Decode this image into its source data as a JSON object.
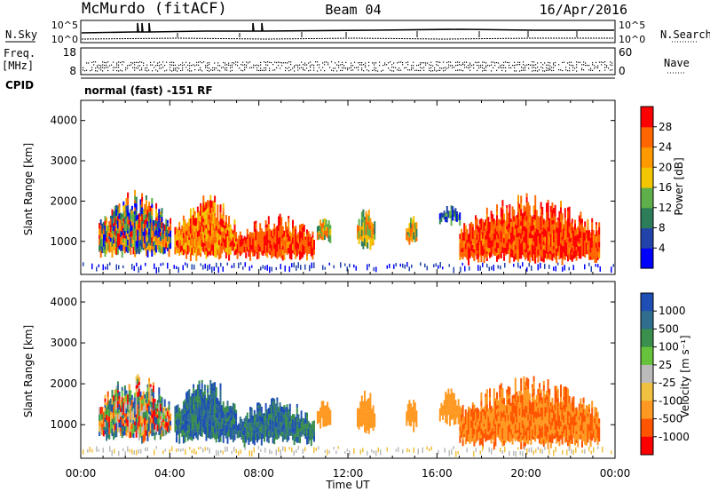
{
  "header": {
    "station": "McMurdo (fitACF)",
    "beam": "Beam 04",
    "date": "16/Apr/2016"
  },
  "top_panel": {
    "nsky_label": "N.Sky",
    "nsky_ticks": [
      "10^5",
      "10^0"
    ],
    "nsearch_label": "N.Search",
    "nsearch_ticks": [
      "10^5",
      "10^0"
    ],
    "freq_label_line1": "Freq.",
    "freq_label_line2": "[MHz]",
    "freq_ticks": [
      "18",
      "8"
    ],
    "nave_label": "Nave",
    "nave_ticks": [
      "60",
      "0"
    ],
    "cpid_label": "CPID",
    "cpid_value": "normal (fast) -151 RF"
  },
  "chart_data": [
    {
      "type": "heatmap",
      "panel": "power",
      "ylabel": "Slant Range [km]",
      "ylim": [
        180,
        4500
      ],
      "yticks": [
        "1000",
        "2000",
        "3000",
        "4000"
      ],
      "xticks": [
        "00:00",
        "04:00",
        "08:00",
        "12:00",
        "16:00",
        "20:00",
        "00:00"
      ],
      "xlim_hours": [
        0,
        24
      ],
      "colorbar": {
        "label": "Power [dB]",
        "ticks": [
          "4",
          "8",
          "12",
          "16",
          "20",
          "24",
          "28"
        ],
        "colors": [
          "#0000ff",
          "#2244aa",
          "#2e7d5a",
          "#5fb04a",
          "#f2c500",
          "#ff9900",
          "#ff6600",
          "#ff0000"
        ]
      },
      "echo_regions": [
        {
          "t_start": 0.8,
          "t_end": 4.0,
          "r_low": 700,
          "r_high": 2300,
          "level": "mixed"
        },
        {
          "t_start": 4.2,
          "t_end": 7.0,
          "r_low": 650,
          "r_high": 2200,
          "level": "high"
        },
        {
          "t_start": 7.0,
          "t_end": 10.5,
          "r_low": 600,
          "r_high": 1700,
          "level": "max"
        },
        {
          "t_start": 10.6,
          "t_end": 11.2,
          "r_low": 1000,
          "r_high": 1700,
          "level": "mid"
        },
        {
          "t_start": 12.4,
          "t_end": 13.2,
          "r_low": 900,
          "r_high": 1900,
          "level": "mid"
        },
        {
          "t_start": 14.6,
          "t_end": 15.1,
          "r_low": 1000,
          "r_high": 1700,
          "level": "mid"
        },
        {
          "t_start": 16.1,
          "t_end": 17.0,
          "r_low": 1500,
          "r_high": 1900,
          "level": "low"
        },
        {
          "t_start": 17.0,
          "t_end": 23.3,
          "r_low": 550,
          "r_high": 2200,
          "level": "max"
        }
      ]
    },
    {
      "type": "heatmap",
      "panel": "velocity",
      "ylabel": "Slant Range [km]",
      "ylim": [
        180,
        4500
      ],
      "yticks": [
        "1000",
        "2000",
        "3000",
        "4000"
      ],
      "xticks": [
        "00:00",
        "04:00",
        "08:00",
        "12:00",
        "16:00",
        "20:00",
        "00:00"
      ],
      "xlabel": "Time UT",
      "xlim_hours": [
        0,
        24
      ],
      "colorbar": {
        "label": "Velocity [m s⁻¹]",
        "ticks": [
          "1000",
          "500",
          "100",
          "25",
          "-25",
          "-100",
          "-500",
          "-1000"
        ],
        "colors": [
          "#1f4fb4",
          "#2f6e8e",
          "#3a8f4d",
          "#66c23a",
          "#bbbbbb",
          "#f0c040",
          "#ff9922",
          "#ff5500",
          "#ff0000"
        ]
      },
      "echo_regions": [
        {
          "t_start": 0.8,
          "t_end": 4.0,
          "r_low": 700,
          "r_high": 2300,
          "level": "mixed"
        },
        {
          "t_start": 4.2,
          "t_end": 7.0,
          "r_low": 650,
          "r_high": 2200,
          "level": "pos"
        },
        {
          "t_start": 7.0,
          "t_end": 10.5,
          "r_low": 600,
          "r_high": 1700,
          "level": "pos"
        },
        {
          "t_start": 10.6,
          "t_end": 11.2,
          "r_low": 1000,
          "r_high": 1700,
          "level": "neg"
        },
        {
          "t_start": 12.4,
          "t_end": 13.2,
          "r_low": 900,
          "r_high": 1900,
          "level": "neg"
        },
        {
          "t_start": 14.6,
          "t_end": 15.1,
          "r_low": 1000,
          "r_high": 1700,
          "level": "neg"
        },
        {
          "t_start": 16.1,
          "t_end": 17.0,
          "r_low": 1100,
          "r_high": 1900,
          "level": "neg"
        },
        {
          "t_start": 17.0,
          "t_end": 23.3,
          "r_low": 550,
          "r_high": 2200,
          "level": "strongneg"
        }
      ]
    }
  ]
}
